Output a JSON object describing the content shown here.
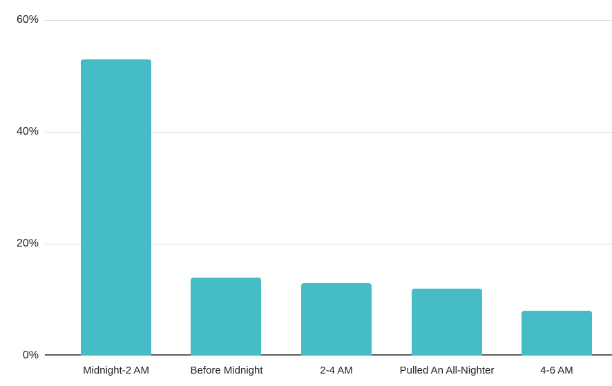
{
  "chart_data": {
    "type": "bar",
    "categories": [
      "Midnight-2 AM",
      "Before Midnight",
      "2-4 AM",
      "Pulled An All-Nighter",
      "4-6 AM"
    ],
    "values": [
      53,
      14,
      13,
      12,
      8
    ],
    "title": "",
    "xlabel": "",
    "ylabel": "",
    "ylim": [
      0,
      60
    ],
    "yticks": [
      0,
      20,
      40,
      60
    ],
    "ytick_labels": [
      "0%",
      "20%",
      "40%",
      "60%"
    ],
    "grid": true,
    "legend_position": "none",
    "bar_color": "#46bdc6",
    "gridline_color": "#dadada",
    "axis_line_color": "#5b5b5b",
    "label_color": "#212121",
    "background_color": "#ffffff"
  }
}
